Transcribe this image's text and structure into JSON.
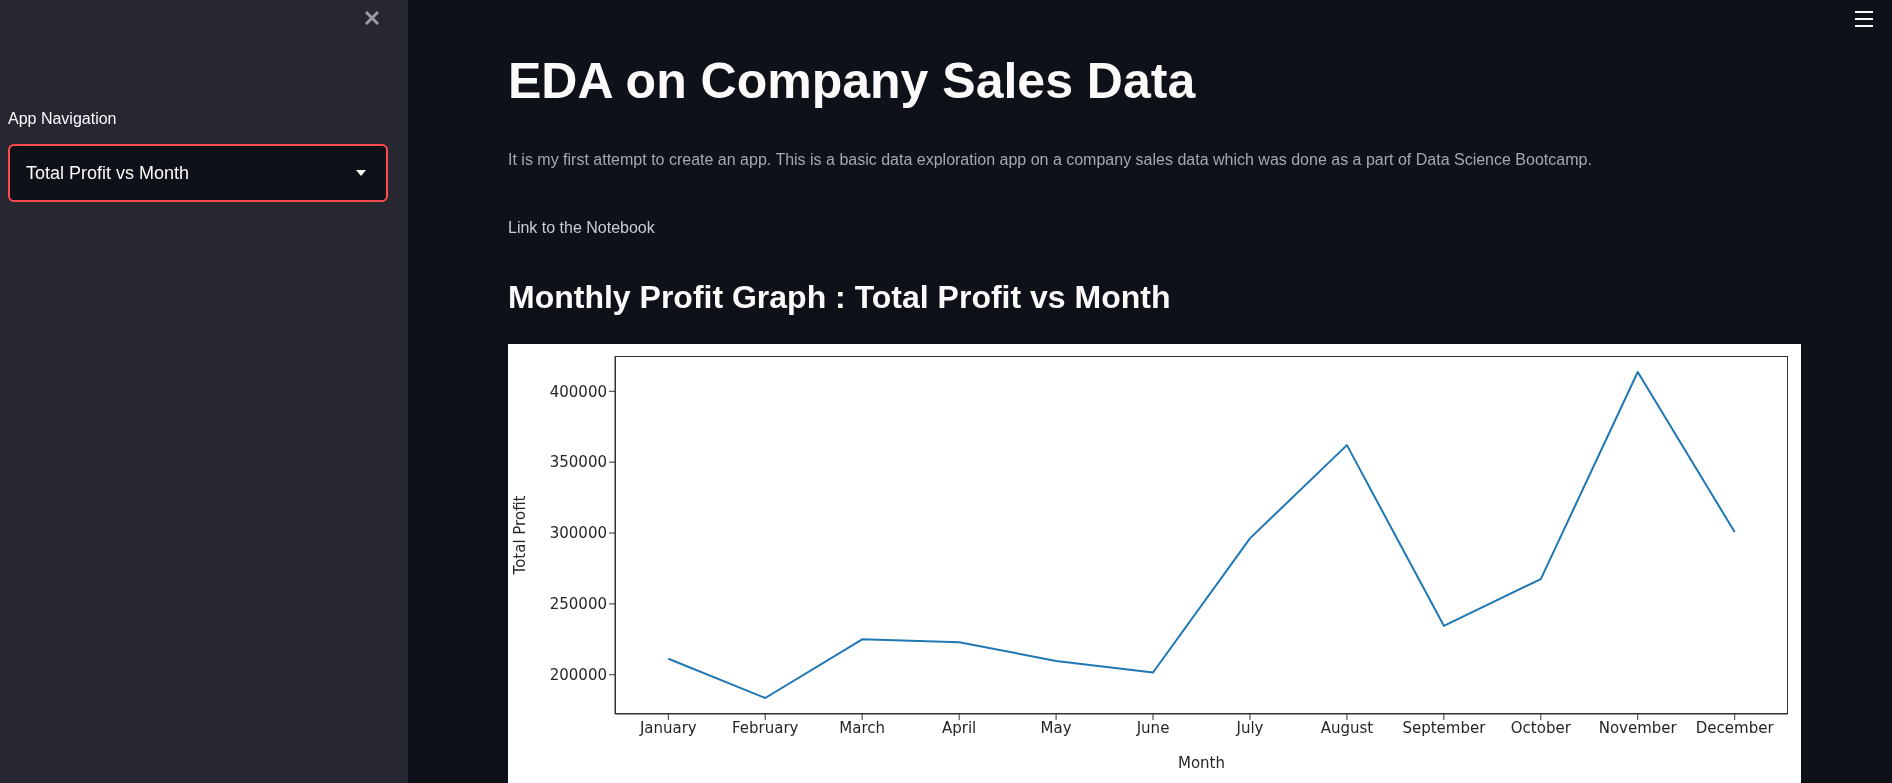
{
  "chart_data": {
    "type": "line",
    "title": "Monthly Profit Graph : Total Profit vs Month",
    "xlabel": "Month",
    "ylabel": "Total Profit",
    "categories": [
      "January",
      "February",
      "March",
      "April",
      "May",
      "June",
      "July",
      "August",
      "September",
      "October",
      "November",
      "December"
    ],
    "series": [
      {
        "color": "#1f77b4",
        "values": [
          211300,
          183600,
          225000,
          223000,
          209700,
          201600,
          296200,
          362000,
          234500,
          267500,
          413600,
          300700
        ]
      }
    ],
    "ylim": [
      172300,
      424900
    ],
    "yticks": [
      200000,
      250000,
      300000,
      350000,
      400000
    ],
    "marker": "none",
    "line_style": "solid",
    "annotations": [
      "EDA on Company Sales Data",
      "It is my first attempt to create an app. This is a basic data exploration app on a company sales data which was done as a part of Data Science Bootcamp.",
      "Link to the Notebook",
      "App Navigation",
      "Total Profit vs Month"
    ]
  }
}
